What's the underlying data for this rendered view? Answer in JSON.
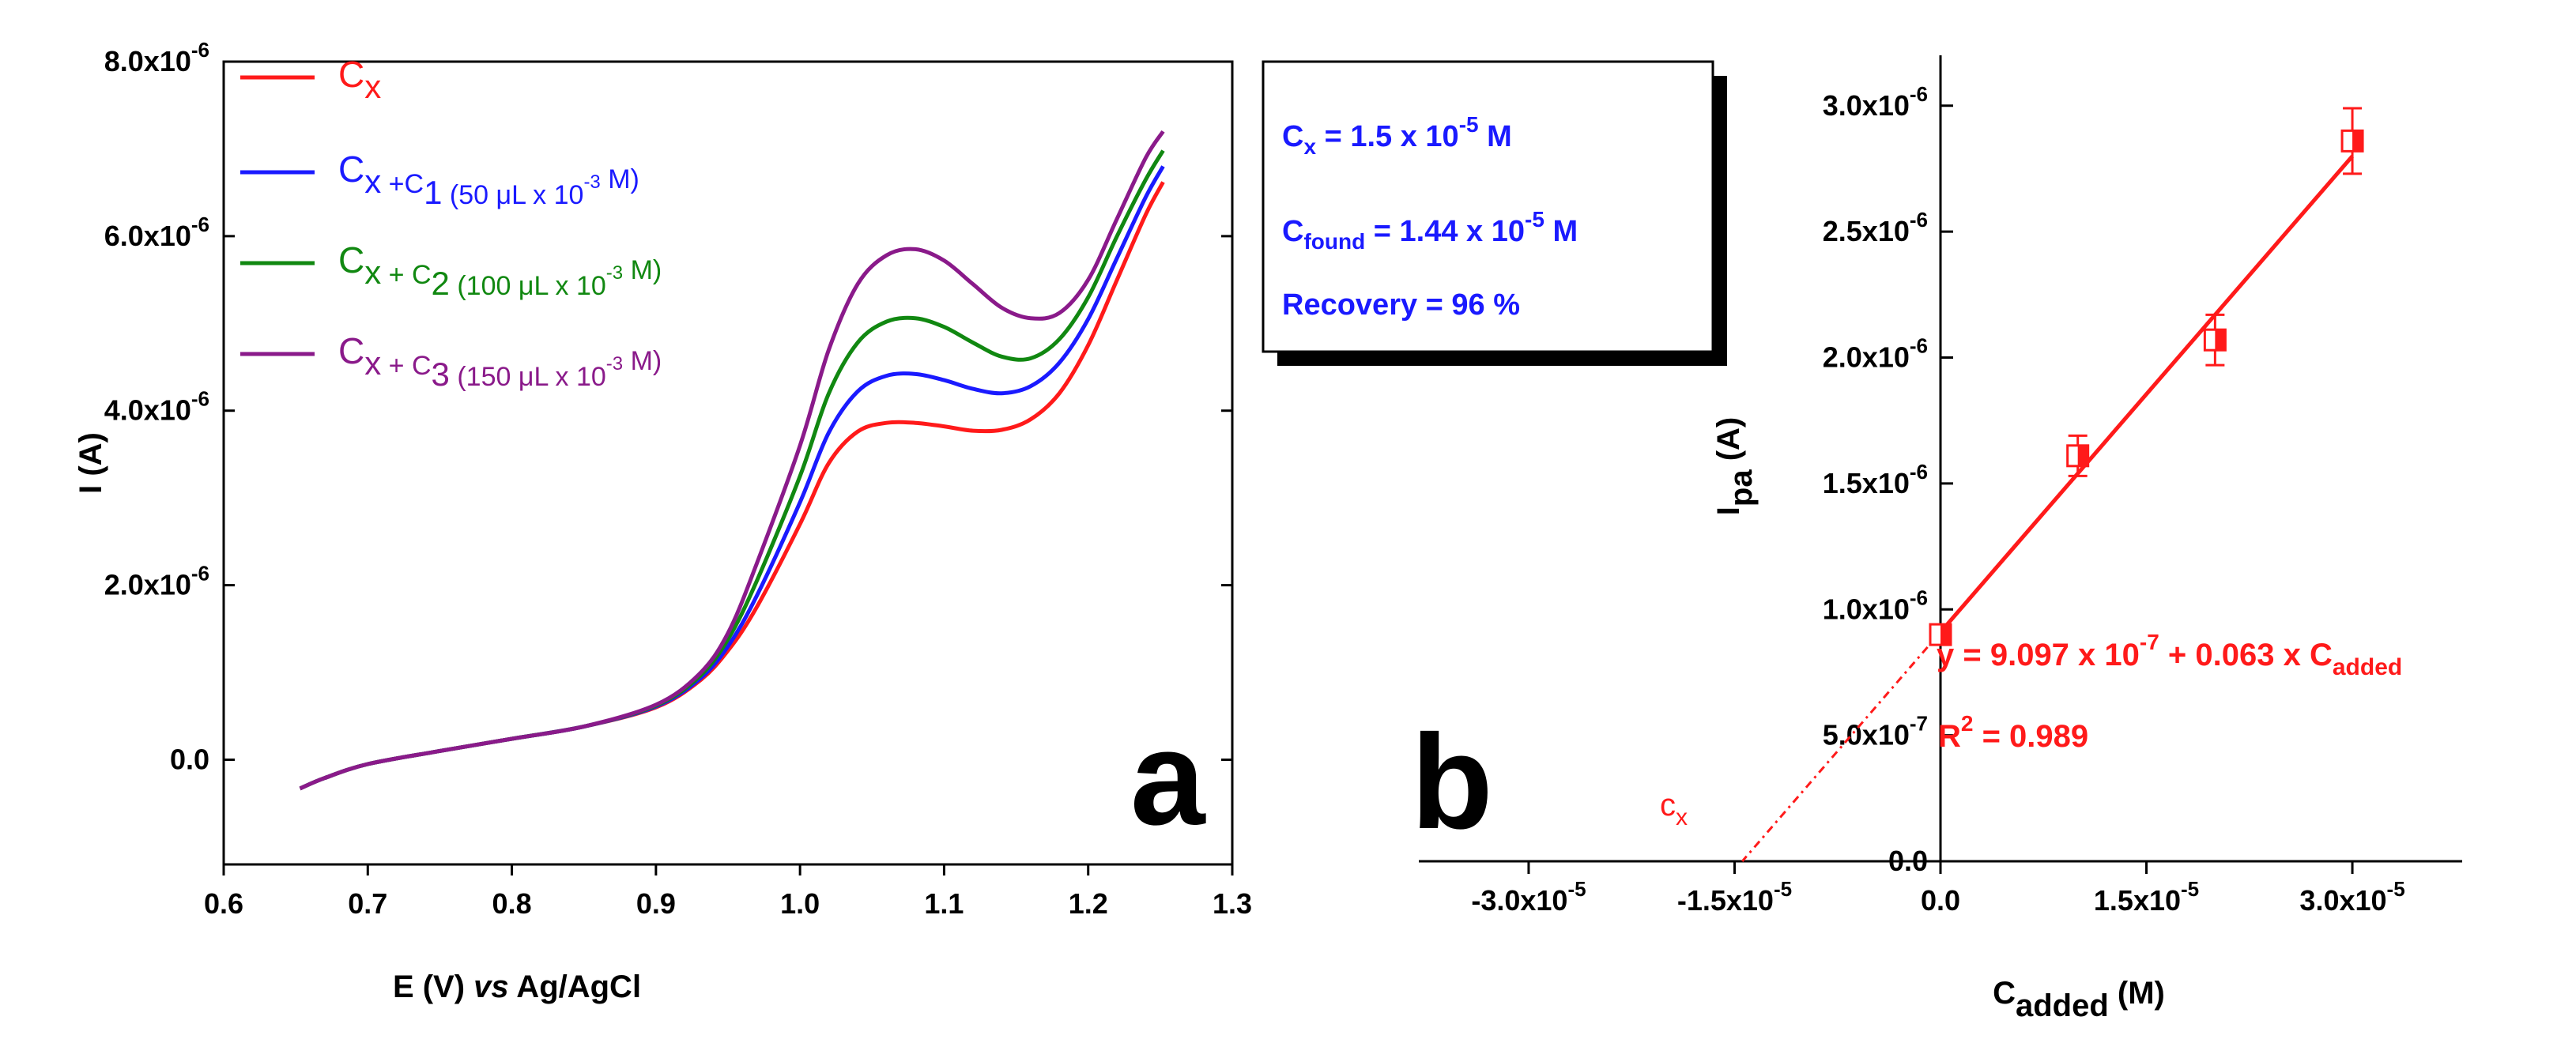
{
  "chart_data": [
    {
      "id": "a",
      "type": "line",
      "panel_letter": "a",
      "xlabel_main": "E (V) ",
      "xlabel_italic": "vs",
      "xlabel_tail": " Ag/AgCl",
      "ylabel": "I (A)",
      "xlim": [
        0.6,
        1.3
      ],
      "ylim": [
        -1.2e-06,
        8e-06
      ],
      "x_ticks": [
        {
          "v": 0.6,
          "label": "0.6"
        },
        {
          "v": 0.7,
          "label": "0.7"
        },
        {
          "v": 0.8,
          "label": "0.8"
        },
        {
          "v": 0.9,
          "label": "0.9"
        },
        {
          "v": 1.0,
          "label": "1.0"
        },
        {
          "v": 1.1,
          "label": "1.1"
        },
        {
          "v": 1.2,
          "label": "1.2"
        },
        {
          "v": 1.3,
          "label": "1.3"
        }
      ],
      "y_ticks": [
        {
          "v": 0,
          "mant": "0.0",
          "exp": ""
        },
        {
          "v": 2e-06,
          "mant": "2.0x10",
          "exp": "-6"
        },
        {
          "v": 4e-06,
          "mant": "4.0x10",
          "exp": "-6"
        },
        {
          "v": 6e-06,
          "mant": "6.0x10",
          "exp": "-6"
        },
        {
          "v": 8e-06,
          "mant": "8.0x10",
          "exp": "-6"
        }
      ],
      "legend_position": "top-left",
      "series": [
        {
          "name": "Cx",
          "color": "#ff1a1a",
          "legend": [
            {
              "t": "C"
            },
            {
              "t": "x",
              "sub": true
            }
          ],
          "x": [
            0.653,
            0.67,
            0.7,
            0.75,
            0.8,
            0.85,
            0.9,
            0.93,
            0.95,
            0.97,
            1.0,
            1.02,
            1.04,
            1.06,
            1.08,
            1.1,
            1.12,
            1.14,
            1.16,
            1.18,
            1.2,
            1.22,
            1.24,
            1.252
          ],
          "y": [
            -3.3e-07,
            -2.1e-07,
            -5e-08,
            1e-07,
            2.4e-07,
            3.8e-07,
            6e-07,
            9e-07,
            1.25e-06,
            1.75e-06,
            2.7e-06,
            3.4e-06,
            3.76e-06,
            3.86e-06,
            3.86e-06,
            3.82e-06,
            3.77e-06,
            3.78e-06,
            3.9e-06,
            4.2e-06,
            4.75e-06,
            5.5e-06,
            6.25e-06,
            6.62e-06
          ]
        },
        {
          "name": "Cx+C1",
          "color": "#1a1aff",
          "legend": [
            {
              "t": "C"
            },
            {
              "t": "x",
              "sub": true
            },
            {
              "t": " +C"
            },
            {
              "t": "1",
              "sub": true
            },
            {
              "t": " (50 μL x 10"
            },
            {
              "t": "-3",
              "sup": true
            },
            {
              "t": " M)"
            }
          ],
          "x": [
            0.653,
            0.67,
            0.7,
            0.75,
            0.8,
            0.85,
            0.9,
            0.93,
            0.95,
            0.97,
            1.0,
            1.02,
            1.04,
            1.06,
            1.08,
            1.1,
            1.12,
            1.14,
            1.16,
            1.18,
            1.2,
            1.22,
            1.24,
            1.252
          ],
          "y": [
            -3.3e-07,
            -2.1e-07,
            -5e-08,
            1e-07,
            2.4e-07,
            3.8e-07,
            6.1e-07,
            9.2e-07,
            1.3e-06,
            1.88e-06,
            2.95e-06,
            3.75e-06,
            4.22e-06,
            4.4e-06,
            4.42e-06,
            4.35e-06,
            4.25e-06,
            4.2e-06,
            4.28e-06,
            4.55e-06,
            5.05e-06,
            5.75e-06,
            6.45e-06,
            6.8e-06
          ]
        },
        {
          "name": "Cx+C2",
          "color": "#118811",
          "legend": [
            {
              "t": "C"
            },
            {
              "t": "x",
              "sub": true
            },
            {
              "t": " + C"
            },
            {
              "t": "2",
              "sub": true
            },
            {
              "t": "  (100 μL x 10"
            },
            {
              "t": "-3",
              "sup": true
            },
            {
              "t": " M)"
            }
          ],
          "x": [
            0.653,
            0.67,
            0.7,
            0.75,
            0.8,
            0.85,
            0.9,
            0.93,
            0.95,
            0.97,
            1.0,
            1.02,
            1.04,
            1.06,
            1.08,
            1.1,
            1.12,
            1.14,
            1.16,
            1.18,
            1.2,
            1.22,
            1.24,
            1.252
          ],
          "y": [
            -3.3e-07,
            -2.1e-07,
            -5e-08,
            1e-07,
            2.4e-07,
            3.8e-07,
            6.2e-07,
            9.5e-07,
            1.38e-06,
            2.05e-06,
            3.25e-06,
            4.2e-06,
            4.78e-06,
            5.02e-06,
            5.06e-06,
            4.96e-06,
            4.78e-06,
            4.62e-06,
            4.6e-06,
            4.82e-06,
            5.3e-06,
            6e-06,
            6.65e-06,
            6.98e-06
          ]
        },
        {
          "name": "Cx+C3",
          "color": "#8a1a8a",
          "legend": [
            {
              "t": "C"
            },
            {
              "t": "x",
              "sub": true
            },
            {
              "t": " + C"
            },
            {
              "t": "3",
              "sub": true
            },
            {
              "t": " (150 μL x 10"
            },
            {
              "t": "-3",
              "sup": true
            },
            {
              "t": " M)"
            }
          ],
          "x": [
            0.653,
            0.67,
            0.7,
            0.75,
            0.8,
            0.85,
            0.9,
            0.93,
            0.95,
            0.97,
            1.0,
            1.02,
            1.04,
            1.06,
            1.08,
            1.1,
            1.12,
            1.14,
            1.16,
            1.18,
            1.2,
            1.22,
            1.24,
            1.252
          ],
          "y": [
            -3.3e-07,
            -2.1e-07,
            -5e-08,
            1e-07,
            2.4e-07,
            3.8e-07,
            6.3e-07,
            9.8e-07,
            1.45e-06,
            2.25e-06,
            3.6e-06,
            4.7e-06,
            5.45e-06,
            5.78e-06,
            5.85e-06,
            5.72e-06,
            5.45e-06,
            5.18e-06,
            5.06e-06,
            5.12e-06,
            5.5e-06,
            6.2e-06,
            6.9e-06,
            7.2e-06
          ]
        }
      ]
    },
    {
      "id": "b",
      "type": "scatter",
      "panel_letter": "b",
      "xlabel": {
        "main": "C",
        "sub": "added",
        "tail": " (M)"
      },
      "ylabel": {
        "main": "I",
        "sub": "pa",
        "tail": " (A)"
      },
      "xlim": [
        -3.8e-05,
        3.8e-05
      ],
      "ylim": [
        0,
        3.2e-06
      ],
      "x_ticks": [
        {
          "v": -3e-05,
          "mant": "-3.0x10",
          "exp": "-5"
        },
        {
          "v": -1.5e-05,
          "mant": "-1.5x10",
          "exp": "-5"
        },
        {
          "v": 0,
          "mant": "0.0",
          "exp": ""
        },
        {
          "v": 1.5e-05,
          "mant": "1.5x10",
          "exp": "-5"
        },
        {
          "v": 3e-05,
          "mant": "3.0x10",
          "exp": "-5"
        }
      ],
      "y_ticks": [
        {
          "v": 0,
          "mant": "0.0",
          "exp": ""
        },
        {
          "v": 5e-07,
          "mant": "5.0x10",
          "exp": "-7"
        },
        {
          "v": 1e-06,
          "mant": "1.0x10",
          "exp": "-6"
        },
        {
          "v": 1.5e-06,
          "mant": "1.5x10",
          "exp": "-6"
        },
        {
          "v": 2e-06,
          "mant": "2.0x10",
          "exp": "-6"
        },
        {
          "v": 2.5e-06,
          "mant": "2.5x10",
          "exp": "-6"
        },
        {
          "v": 3e-06,
          "mant": "3.0x10",
          "exp": "-6"
        }
      ],
      "color": "#ff1a1a",
      "points": [
        {
          "x": 0,
          "y": 9e-07,
          "err": 3e-08
        },
        {
          "x": 1e-05,
          "y": 1.61e-06,
          "err": 8e-08
        },
        {
          "x": 2e-05,
          "y": 2.07e-06,
          "err": 1e-07
        },
        {
          "x": 3e-05,
          "y": 2.86e-06,
          "err": 1.3e-07
        }
      ],
      "fit": {
        "intercept": 9.097e-07,
        "slope": 0.063,
        "x_range": [
          0,
          3e-05
        ],
        "extrapolate_to": -1.44e-05
      },
      "equation": {
        "pre": "y = 9.097 x 10",
        "exp": "-7",
        "mid": " + 0.063 x C",
        "sub": "added"
      },
      "r2": {
        "pre": "R",
        "sup": "2",
        "post": " = 0.989"
      },
      "cx_label": {
        "main": "c",
        "sub": "x"
      }
    }
  ],
  "info_box": {
    "line1": {
      "main": "C",
      "sub": "x",
      "mid": " = 1.5 x 10",
      "sup": "-5",
      "tail": " M"
    },
    "line2": {
      "main": "C",
      "sub": "found",
      "mid": " = 1.44 x 10",
      "sup": "-5",
      "tail": " M"
    },
    "line3": "Recovery = 96 %"
  }
}
